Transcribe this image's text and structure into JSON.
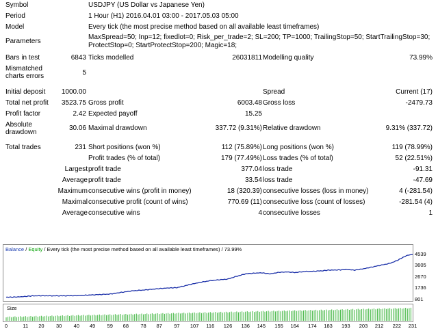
{
  "header": {
    "symbol": {
      "label": "Symbol",
      "value": "USDJPY (US Dollar vs Japanese Yen)"
    },
    "period": {
      "label": "Period",
      "value": "1 Hour (H1) 2016.04.01 03:00 - 2017.05.03 05:00"
    },
    "model": {
      "label": "Model",
      "value": "Every tick (the most precise method based on all available least timeframes)"
    },
    "parameters": {
      "label": "Parameters",
      "value": "MaxSpread=50; Inp=12; fixedlot=0; Risk_per_trade=2; SL=200; TP=1000; TrailingStop=50; StartTrailingStop=30; ProtectStop=0; StartProtectStop=200; Magic=18;"
    }
  },
  "stats": {
    "bars_in_test": {
      "label": "Bars in test",
      "value": "6843"
    },
    "ticks_modelled": {
      "label": "Ticks modelled",
      "value": "26031811"
    },
    "modelling_quality": {
      "label": "Modelling quality",
      "value": "73.99%"
    },
    "mismatched": {
      "label": "Mismatched charts errors",
      "value": "5"
    },
    "initial_deposit": {
      "label": "Initial deposit",
      "value": "1000.00"
    },
    "spread": {
      "label": "Spread",
      "value": "Current (17)"
    },
    "total_net_profit": {
      "label": "Total net profit",
      "value": "3523.75"
    },
    "gross_profit": {
      "label": "Gross profit",
      "value": "6003.48"
    },
    "gross_loss": {
      "label": "Gross loss",
      "value": "-2479.73"
    },
    "profit_factor": {
      "label": "Profit factor",
      "value": "2.42"
    },
    "expected_payoff": {
      "label": "Expected payoff",
      "value": "15.25"
    },
    "absolute_drawdown": {
      "label": "Absolute drawdown",
      "value": "30.06"
    },
    "maximal_drawdown": {
      "label": "Maximal drawdown",
      "value": "337.72 (9.31%)"
    },
    "relative_drawdown": {
      "label": "Relative drawdown",
      "value": "9.31% (337.72)"
    },
    "total_trades": {
      "label": "Total trades",
      "value": "231"
    },
    "short_positions": {
      "label": "Short positions (won %)",
      "value": "112 (75.89%)"
    },
    "long_positions": {
      "label": "Long positions (won %)",
      "value": "119 (78.99%)"
    },
    "profit_trades": {
      "label": "Profit trades (% of total)",
      "value": "179 (77.49%)"
    },
    "loss_trades": {
      "label": "Loss trades (% of total)",
      "value": "52 (22.51%)"
    },
    "largest": {
      "prefix": "Largest",
      "profit_label": "profit trade",
      "profit_value": "377.04",
      "loss_label": "loss trade",
      "loss_value": "-91.31"
    },
    "average": {
      "prefix": "Average",
      "profit_label": "profit trade",
      "profit_value": "33.54",
      "loss_label": "loss trade",
      "loss_value": "-47.69"
    },
    "maximum": {
      "prefix": "Maximum",
      "profit_label": "consecutive wins (profit in money)",
      "profit_value": "18 (320.39)",
      "loss_label": "consecutive losses (loss in money)",
      "loss_value": "4 (-281.54)"
    },
    "maximal": {
      "prefix": "Maximal",
      "profit_label": "consecutive profit (count of wins)",
      "profit_value": "770.69 (11)",
      "loss_label": "consecutive loss (count of losses)",
      "loss_value": "-281.54 (4)"
    },
    "average_consec": {
      "prefix": "Average",
      "profit_label": "consecutive wins",
      "profit_value": "4",
      "loss_label": "consecutive losses",
      "loss_value": "1"
    }
  },
  "chart": {
    "title_balance": "Balance",
    "title_sep": " / ",
    "title_equity": "Equity",
    "title_rest": " / Every tick (the most precise method based on all available least timeframes) / 73.99%",
    "size_label": "Size",
    "y_ticks": [
      "4539",
      "3605",
      "2670",
      "1736",
      "801"
    ],
    "x_ticks": [
      "0",
      "11",
      "20",
      "30",
      "40",
      "49",
      "59",
      "68",
      "78",
      "87",
      "97",
      "107",
      "116",
      "126",
      "136",
      "145",
      "155",
      "164",
      "174",
      "183",
      "193",
      "203",
      "212",
      "222",
      "231"
    ],
    "colors": {
      "balance": "#1a2fa8",
      "size": "#3cb43c",
      "frame": "#8c8c8c"
    }
  },
  "chart_data": {
    "type": "line",
    "title": "Balance / Equity / Every tick (the most precise method based on all available least timeframes) / 73.99%",
    "xlabel": "",
    "ylabel": "",
    "xlim": [
      0,
      231
    ],
    "ylim": [
      801,
      4539
    ],
    "series": [
      {
        "name": "Balance",
        "x": [
          0,
          5,
          10,
          15,
          20,
          30,
          40,
          49,
          59,
          68,
          72,
          78,
          87,
          92,
          97,
          107,
          110,
          116,
          120,
          126,
          130,
          136,
          140,
          145,
          150,
          155,
          160,
          164,
          170,
          174,
          180,
          183,
          190,
          193,
          198,
          203,
          208,
          212,
          218,
          222,
          225,
          228,
          231
        ],
        "y": [
          1000,
          1010,
          1050,
          1110,
          1120,
          1110,
          1130,
          1190,
          1260,
          1450,
          1530,
          1590,
          1710,
          1760,
          1790,
          2130,
          2220,
          2370,
          2430,
          2500,
          2690,
          2930,
          2980,
          3020,
          2930,
          3060,
          3090,
          3040,
          3130,
          3140,
          3190,
          3240,
          3260,
          3300,
          3240,
          3350,
          3500,
          3620,
          3800,
          4020,
          4260,
          4470,
          4540
        ]
      }
    ],
    "size_bars": {
      "count": 231,
      "values": "uniform small lots, slightly increasing over time"
    }
  }
}
